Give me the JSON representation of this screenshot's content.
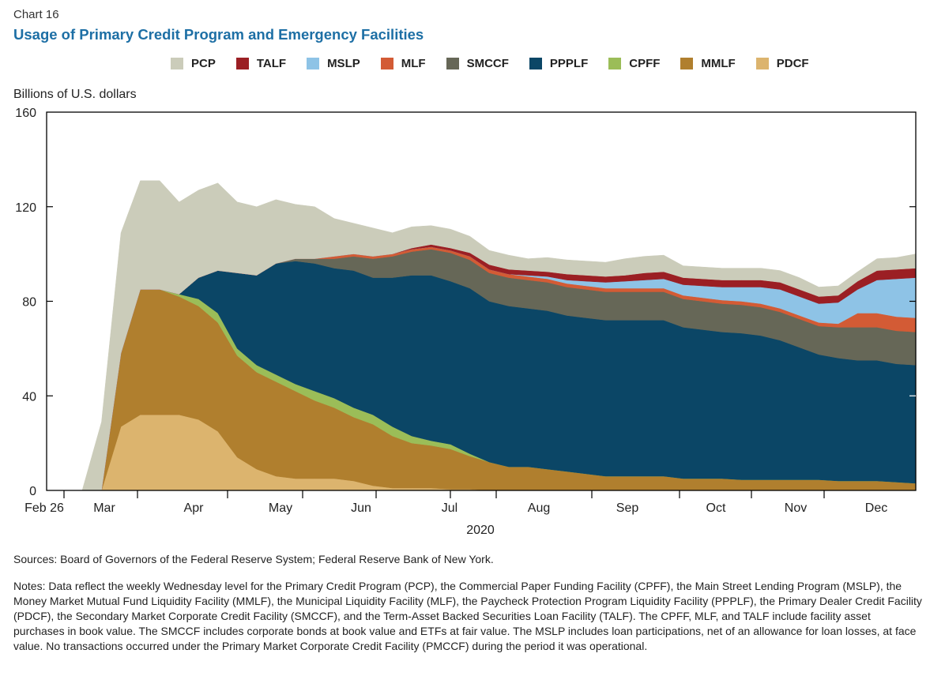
{
  "header": {
    "chart_number": "Chart 16",
    "title": "Usage of Primary Credit Program and Emergency Facilities"
  },
  "legend": [
    {
      "name": "PCP",
      "color": "#cbccba"
    },
    {
      "name": "TALF",
      "color": "#9b1f24"
    },
    {
      "name": "MSLP",
      "color": "#8ec3e6"
    },
    {
      "name": "MLF",
      "color": "#d35b35"
    },
    {
      "name": "SMCCF",
      "color": "#666757"
    },
    {
      "name": "PPPLF",
      "color": "#0b4666"
    },
    {
      "name": "CPFF",
      "color": "#9bbd58"
    },
    {
      "name": "MMLF",
      "color": "#b07f2e"
    },
    {
      "name": "PDCF",
      "color": "#dcb46e"
    }
  ],
  "chart_data": {
    "type": "area",
    "stacked": true,
    "title": "Usage of Primary Credit Program and Emergency Facilities",
    "ylabel": "Billions of U.S. dollars",
    "xlabel": "2020",
    "ylim": [
      0,
      160
    ],
    "yticks": [
      0,
      40,
      80,
      120,
      160
    ],
    "xtick_labels": [
      "Feb 26",
      "Mar",
      "Apr",
      "May",
      "Jun",
      "Jul",
      "Aug",
      "Sep",
      "Oct",
      "Nov",
      "Dec"
    ],
    "x_year_label": "2020",
    "grid": false,
    "legend_position": "top",
    "x_start_week": "Feb 26",
    "x_end_week": "Dec 30",
    "x": [
      "Mar 4",
      "Mar 11",
      "Mar 18",
      "Mar 25",
      "Apr 1",
      "Apr 8",
      "Apr 15",
      "Apr 22",
      "Apr 29",
      "May 6",
      "May 13",
      "May 20",
      "May 27",
      "Jun 3",
      "Jun 10",
      "Jun 17",
      "Jun 24",
      "Jul 1",
      "Jul 8",
      "Jul 15",
      "Jul 22",
      "Jul 29",
      "Aug 5",
      "Aug 12",
      "Aug 19",
      "Aug 26",
      "Sep 2",
      "Sep 9",
      "Sep 16",
      "Sep 23",
      "Sep 30",
      "Oct 7",
      "Oct 14",
      "Oct 21",
      "Oct 28",
      "Nov 4",
      "Nov 11",
      "Nov 18",
      "Nov 25",
      "Dec 2",
      "Dec 9",
      "Dec 16",
      "Dec 23",
      "Dec 30"
    ],
    "series": [
      {
        "name": "PDCF",
        "values": [
          0,
          0,
          27,
          32,
          32,
          32,
          30,
          25,
          14,
          9,
          6,
          5,
          5,
          5,
          4,
          2,
          1,
          1,
          1,
          0.5,
          0.5,
          0,
          0,
          0,
          0,
          0,
          0,
          0,
          0,
          0,
          0,
          0,
          0,
          0,
          0,
          0,
          0,
          0,
          0,
          0,
          0,
          0,
          0,
          0
        ]
      },
      {
        "name": "MMLF",
        "values": [
          0,
          0,
          31,
          53,
          53,
          50,
          48,
          46,
          43,
          41,
          40,
          37,
          33,
          30,
          27,
          26,
          22,
          19,
          18,
          17,
          14,
          12,
          10,
          10,
          9,
          8,
          7,
          6,
          6,
          6,
          6,
          5,
          5,
          5,
          4.5,
          4.5,
          4.5,
          4.5,
          4.5,
          4,
          4,
          4,
          3.5,
          3
        ]
      },
      {
        "name": "CPFF",
        "values": [
          0,
          0,
          0,
          0,
          0,
          1,
          3,
          4,
          3,
          3,
          3,
          3,
          4,
          4,
          4,
          4,
          4,
          3,
          2,
          2,
          1,
          0,
          0,
          0,
          0,
          0,
          0,
          0,
          0,
          0,
          0,
          0,
          0,
          0,
          0,
          0,
          0,
          0,
          0,
          0,
          0,
          0,
          0,
          0
        ]
      },
      {
        "name": "PPPLF",
        "values": [
          0,
          0,
          0,
          0,
          0,
          0,
          9,
          18,
          32,
          38,
          47,
          52,
          54,
          55,
          58,
          58,
          63,
          68,
          70,
          69,
          70,
          68,
          68,
          67,
          67,
          66,
          66,
          66,
          66,
          66,
          66,
          64,
          63,
          62,
          62,
          61,
          59,
          56,
          53,
          52,
          51,
          51,
          50,
          50
        ]
      },
      {
        "name": "SMCCF",
        "values": [
          0,
          0,
          0,
          0,
          0,
          0,
          0,
          0,
          0,
          0,
          0,
          1,
          2,
          4,
          6,
          8,
          9,
          10,
          11,
          12,
          12,
          12,
          12,
          12,
          12,
          12,
          12,
          12,
          12,
          12,
          12,
          12,
          12,
          12,
          12,
          12,
          12,
          12,
          12,
          13,
          14,
          14,
          14,
          14
        ]
      },
      {
        "name": "MLF",
        "values": [
          0,
          0,
          0,
          0,
          0,
          0,
          0,
          0,
          0,
          0,
          0,
          0,
          0,
          1,
          1,
          1,
          1,
          1,
          1,
          1,
          1.5,
          1.5,
          1.5,
          1.5,
          1.5,
          1.5,
          1.5,
          1.5,
          1.5,
          1.5,
          1.5,
          1.5,
          1.5,
          1.5,
          1.5,
          1.5,
          1.5,
          1.5,
          1.5,
          1.5,
          6,
          6,
          6,
          6
        ]
      },
      {
        "name": "MSLP",
        "values": [
          0,
          0,
          0,
          0,
          0,
          0,
          0,
          0,
          0,
          0,
          0,
          0,
          0,
          0,
          0,
          0,
          0,
          0,
          0,
          0,
          0,
          0,
          0,
          0.5,
          1,
          1.5,
          2,
          2.5,
          3,
          3.5,
          4,
          4.5,
          5,
          5.5,
          6,
          7,
          8,
          8,
          8,
          9,
          10,
          14,
          16,
          17
        ]
      },
      {
        "name": "TALF",
        "values": [
          0,
          0,
          0,
          0,
          0,
          0,
          0,
          0,
          0,
          0,
          0,
          0,
          0,
          0,
          0,
          0,
          0,
          0.5,
          1,
          1,
          1.5,
          2,
          2,
          2,
          2,
          2.5,
          2.5,
          2.5,
          2.5,
          3,
          3,
          3,
          3,
          3,
          3,
          3,
          3,
          3,
          3,
          3,
          3.5,
          4,
          4,
          4
        ]
      },
      {
        "name": "PCP",
        "values": [
          0,
          29,
          51,
          46,
          46,
          39,
          37,
          37,
          30,
          29,
          27,
          23,
          22,
          16,
          13,
          12,
          9,
          9,
          8,
          8,
          7,
          6,
          6,
          5,
          6,
          6,
          6,
          6,
          7,
          7,
          7,
          5,
          5,
          5,
          5,
          5,
          5,
          5,
          4,
          4,
          4,
          5,
          5,
          6
        ]
      }
    ]
  },
  "footer": {
    "sources": "Sources: Board of Governors of the Federal Reserve System; Federal Reserve Bank of New York.",
    "notes": "Notes: Data reflect the weekly Wednesday level for the Primary Credit Program (PCP), the Commercial Paper Funding Facility (CPFF), the Main Street Lending Program (MSLP), the Money Market Mutual Fund Liquidity Facility (MMLF), the Municipal Liquidity Facility (MLF), the Paycheck Protection Program Liquidity Facility (PPPLF), the Primary Dealer Credit Facility (PDCF), the Secondary Market Corporate Credit Facility (SMCCF), and the Term-Asset Backed Securities Loan Facility (TALF). The CPFF, MLF, and TALF include facility asset purchases in book value. The SMCCF includes corporate bonds at book value and ETFs at fair value. The MSLP includes loan participations, net of an allowance for loan losses, at face value. No transactions occurred under the Primary Market Corporate Credit Facility (PMCCF) during the period it was operational."
  }
}
